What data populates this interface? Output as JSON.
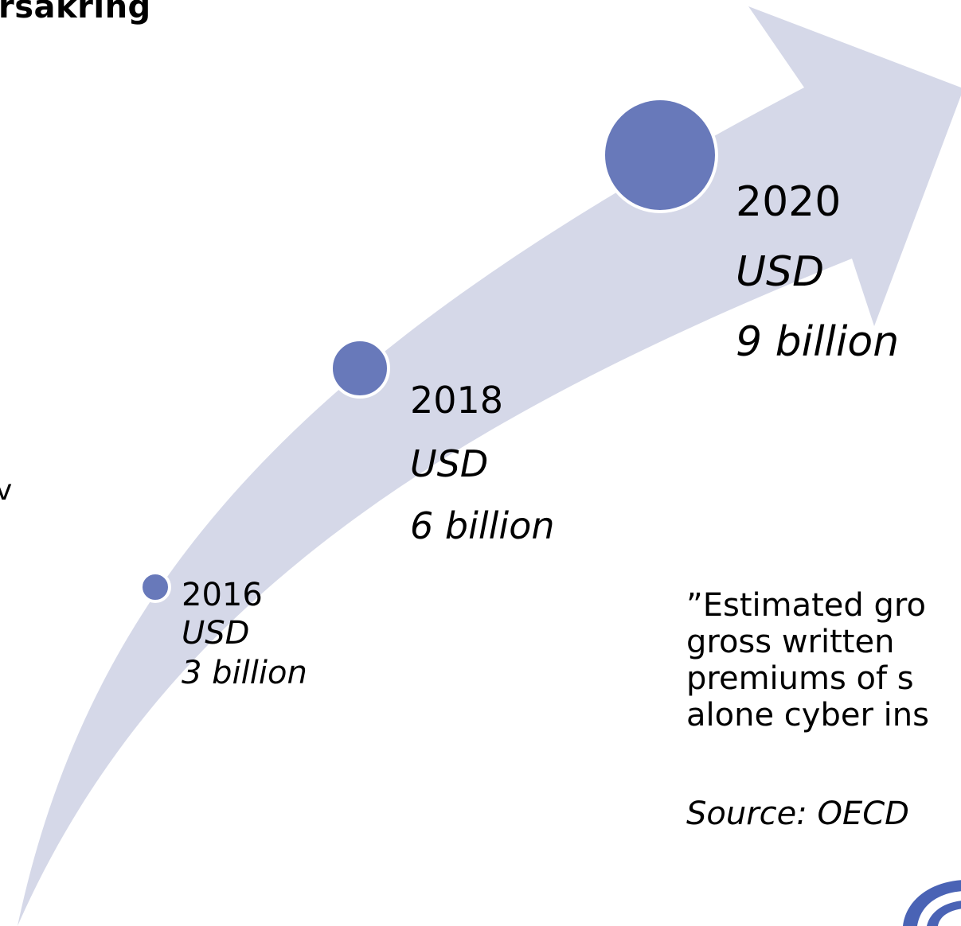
{
  "title_fragment": "rsäkring",
  "side_fragment": "v",
  "milestones": [
    {
      "year": "2016",
      "currency": "USD",
      "amount": "3 billion",
      "value_billion_usd": 3
    },
    {
      "year": "2018",
      "currency": "USD",
      "amount": "6 billion",
      "value_billion_usd": 6
    },
    {
      "year": "2020",
      "currency": "USD",
      "amount": "9 billion",
      "value_billion_usd": 9
    }
  ],
  "quote": {
    "lines": [
      "”Estimated gro",
      "gross written",
      "premiums of s",
      "alone cyber ins"
    ]
  },
  "source": "Source: OECD",
  "colors": {
    "arrow": "#D5D8E8",
    "marker": "#6879BA",
    "marker_border": "#FFFFFF",
    "logo": "#4A63B5"
  },
  "icons": {
    "logo": "logo-icon"
  }
}
